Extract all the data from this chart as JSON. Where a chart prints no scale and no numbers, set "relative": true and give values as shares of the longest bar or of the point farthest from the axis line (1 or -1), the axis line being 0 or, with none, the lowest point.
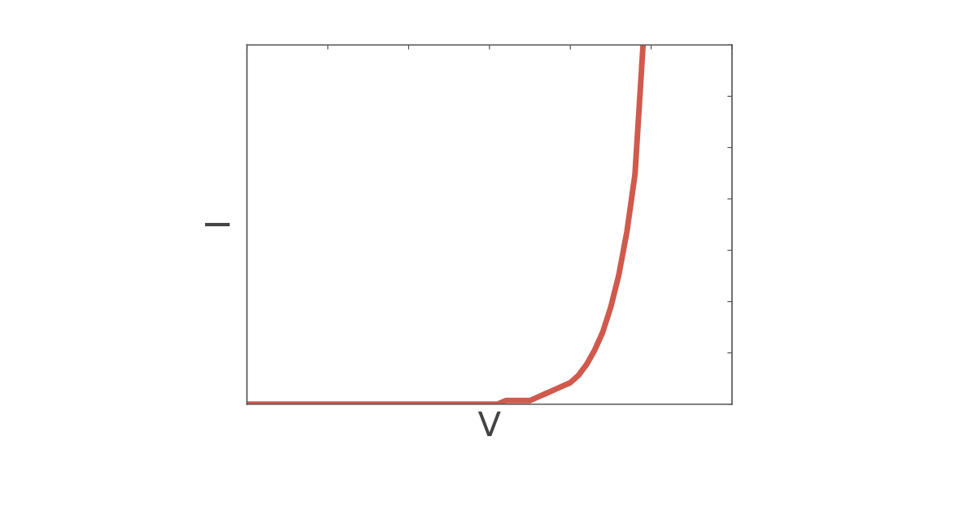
{
  "chart_data": {
    "type": "line",
    "xlabel": "V",
    "ylabel": "I",
    "relative": true,
    "tick_labels": false,
    "grid": false,
    "categories": [
      null,
      null,
      null,
      null,
      null,
      null,
      null,
      null,
      null,
      null,
      null,
      null,
      null,
      null,
      null,
      null,
      null,
      null,
      null,
      null,
      null,
      null,
      null,
      null,
      null,
      null,
      null,
      null,
      null,
      null,
      null,
      null,
      null,
      null,
      null,
      null,
      null,
      null,
      null,
      null,
      null,
      null,
      null,
      null,
      null,
      null,
      null,
      null,
      null,
      null,
      null,
      null,
      null,
      null,
      null,
      null,
      null,
      null,
      null,
      null,
      null
    ],
    "series": [
      {
        "color": "#d05a4c",
        "values": [
          0,
          0,
          0,
          0,
          0,
          0,
          0,
          0,
          0,
          0,
          0,
          0,
          0,
          0,
          0,
          0,
          0,
          0,
          0,
          0,
          0,
          0,
          0,
          0,
          0,
          0,
          0,
          0,
          0,
          0,
          0,
          0,
          0.01,
          0.01,
          0.01,
          0.01,
          0.02,
          0.03,
          0.04,
          0.05,
          0.06,
          0.08,
          0.11,
          0.15,
          0.2,
          0.27,
          0.36,
          0.48,
          0.64,
          1.0,
          null,
          null,
          null,
          null,
          null,
          null,
          null,
          null,
          null,
          null,
          null
        ]
      }
    ]
  }
}
